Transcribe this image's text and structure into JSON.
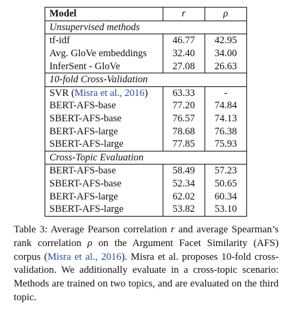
{
  "table": {
    "header": {
      "model": "Model",
      "r": "r",
      "rho": "ρ"
    },
    "sections": [
      {
        "title": "Unsupervised methods",
        "rows": [
          {
            "model": "tf-idf",
            "r": "46.77",
            "rho": "42.95"
          },
          {
            "model": "Avg. GloVe embeddings",
            "r": "32.40",
            "rho": "34.00"
          },
          {
            "model": "InferSent - GloVe",
            "r": "27.08",
            "rho": "26.63"
          }
        ]
      },
      {
        "title": "10-fold Cross-Validation",
        "rows": [
          {
            "model": "SVR (",
            "cite": "Misra et al., 2016",
            "model_end": ")",
            "r": "63.33",
            "rho": "-"
          },
          {
            "model": "BERT-AFS-base",
            "r": "77.20",
            "rho": "74.84"
          },
          {
            "model": "SBERT-AFS-base",
            "r": "76.57",
            "rho": "74.13"
          },
          {
            "model": "BERT-AFS-large",
            "r": "78.68",
            "rho": "76.38"
          },
          {
            "model": "SBERT-AFS-large",
            "r": "77.85",
            "rho": "75.93"
          }
        ]
      },
      {
        "title": "Cross-Topic Evaluation",
        "rows": [
          {
            "model": "BERT-AFS-base",
            "r": "58.49",
            "rho": "57.23"
          },
          {
            "model": "SBERT-AFS-base",
            "r": "52.34",
            "rho": "50.65"
          },
          {
            "model": "BERT-AFS-large",
            "r": "62.02",
            "rho": "60.34"
          },
          {
            "model": "SBERT-AFS-large",
            "r": "53.82",
            "rho": "53.10"
          }
        ]
      }
    ]
  },
  "caption": {
    "p1": "Table 3: Average Pearson correlation ",
    "r": "r",
    "p2": " and average Spearman’s rank correlation ",
    "rho": "ρ",
    "p3": " on the Argument Facet Similarity (AFS) corpus (",
    "cite": "Misra et al., 2016",
    "p4": "). Misra et al. proposes 10-fold cross-validation. We additionally evaluate in a cross-topic scenario: Methods are trained on two topics, and are evaluated on the third topic."
  }
}
